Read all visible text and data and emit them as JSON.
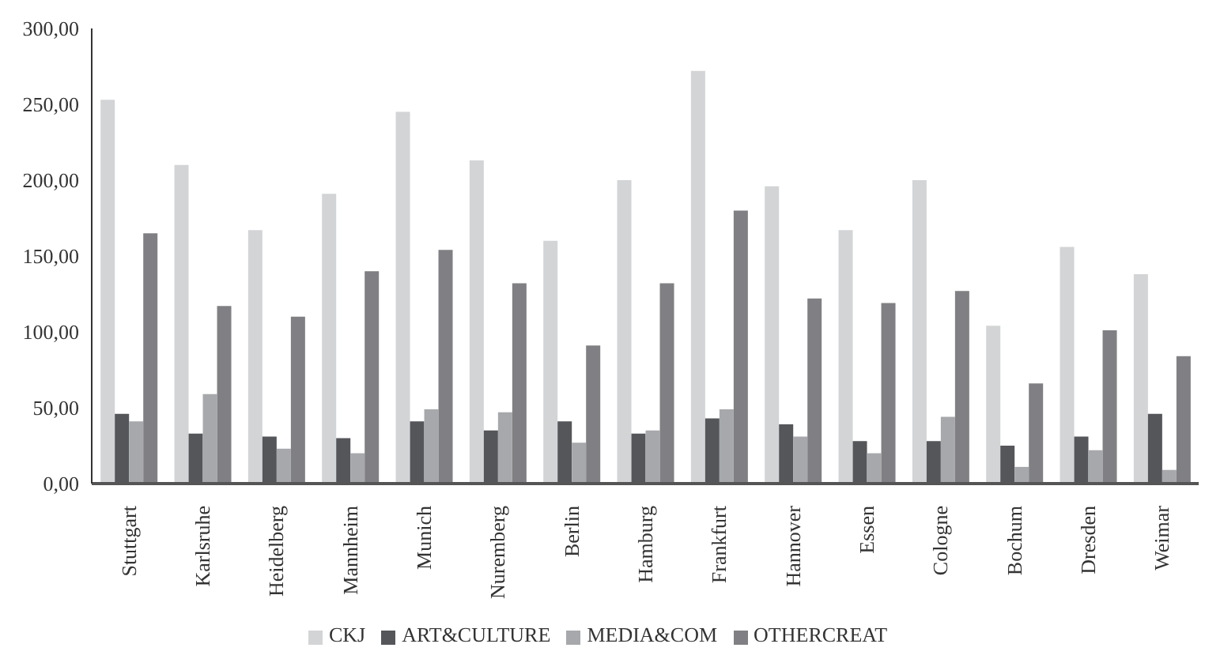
{
  "chart_data": {
    "type": "bar",
    "categories": [
      "Stuttgart",
      "Karlsruhe",
      "Heidelberg",
      "Mannheim",
      "Munich",
      "Nuremberg",
      "Berlin",
      "Hamburg",
      "Frankfurt",
      "Hannover",
      "Essen",
      "Cologne",
      "Bochum",
      "Dresden",
      "Weimar"
    ],
    "series": [
      {
        "name": "CKJ",
        "color": "#d3d4d6",
        "values": [
          253,
          210,
          167,
          191,
          245,
          213,
          160,
          200,
          272,
          196,
          167,
          200,
          104,
          156,
          138
        ]
      },
      {
        "name": "ART&CULTURE",
        "color": "#55565a",
        "values": [
          46,
          33,
          31,
          30,
          41,
          35,
          41,
          33,
          43,
          39,
          28,
          28,
          25,
          31,
          46
        ]
      },
      {
        "name": "MEDIA&COM",
        "color": "#a7a8ab",
        "values": [
          41,
          59,
          23,
          20,
          49,
          47,
          27,
          35,
          49,
          31,
          20,
          44,
          11,
          22,
          9
        ]
      },
      {
        "name": "OTHERCREAT",
        "color": "#808084",
        "values": [
          165,
          117,
          110,
          140,
          154,
          132,
          91,
          132,
          180,
          122,
          119,
          127,
          66,
          101,
          84
        ]
      }
    ],
    "ylim": [
      0,
      300
    ],
    "yticks": [
      {
        "value": 0,
        "label": "0,00"
      },
      {
        "value": 50,
        "label": "50,00"
      },
      {
        "value": 100,
        "label": "100,00"
      },
      {
        "value": 150,
        "label": "150,00"
      },
      {
        "value": 200,
        "label": "200,00"
      },
      {
        "value": 250,
        "label": "250,00"
      },
      {
        "value": 300,
        "label": "300,00"
      }
    ],
    "grid": false,
    "legend": "bottom"
  }
}
